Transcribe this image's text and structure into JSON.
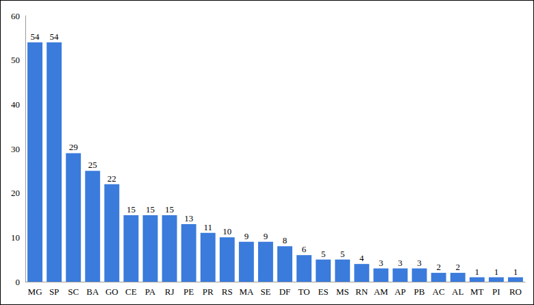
{
  "chart_data": {
    "type": "bar",
    "categories": [
      "MG",
      "SP",
      "SC",
      "BA",
      "GO",
      "CE",
      "PA",
      "RJ",
      "PE",
      "PR",
      "RS",
      "MA",
      "SE",
      "DF",
      "TO",
      "ES",
      "MS",
      "RN",
      "AM",
      "AP",
      "PB",
      "AC",
      "AL",
      "MT",
      "PI",
      "RO"
    ],
    "values": [
      54,
      54,
      29,
      25,
      22,
      15,
      15,
      15,
      13,
      11,
      10,
      9,
      9,
      8,
      6,
      5,
      5,
      4,
      3,
      3,
      3,
      2,
      2,
      1,
      1,
      1
    ],
    "color": "#3a7bdc",
    "ylim": [
      0,
      60
    ],
    "yticks": [
      0,
      10,
      20,
      30,
      40,
      50,
      60
    ],
    "grid": false,
    "data_labels": true
  }
}
